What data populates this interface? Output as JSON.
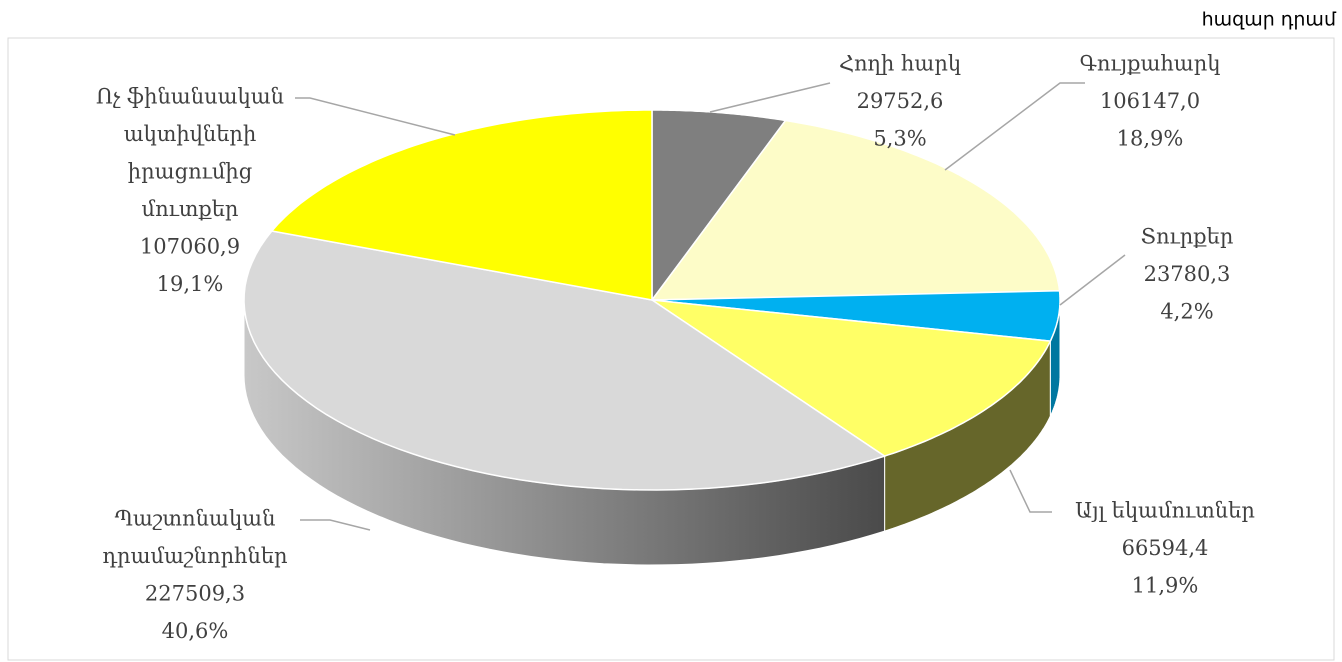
{
  "chart_data": {
    "type": "pie",
    "unit": "հազար դրամ",
    "categories": [
      [
        "Հողի հարկ"
      ],
      [
        "Գույքահարկ"
      ],
      [
        "Տուրքեր"
      ],
      [
        "Այլ եկամուտներ"
      ],
      [
        "Պաշտոնական",
        "դրամաշնորհներ"
      ],
      [
        "Ոչ ֆինանսական",
        "ակտիվների",
        "իրացումից",
        "մուտքեր"
      ]
    ],
    "values": [
      29752.6,
      106147.0,
      23780.3,
      66594.4,
      227509.3,
      107060.9
    ],
    "value_labels": [
      "29752,6",
      "106147,0",
      "23780,3",
      "66594,4",
      "227509,3",
      "107060,9"
    ],
    "percentages": [
      5.3,
      18.9,
      4.2,
      11.9,
      40.6,
      19.1
    ],
    "percentage_labels": [
      "5,3%",
      "18,9%",
      "4,2%",
      "11,9%",
      "40,6%",
      "19,1%"
    ],
    "colors": [
      "#7f7f7f",
      "#fdfcc8",
      "#00b0f0",
      "#ffff66",
      "#d9d9d9",
      "#ffff00"
    ],
    "side_colors": [
      "#555555",
      "#a9a884",
      "#0077a0",
      "#66662a",
      "#8c8c8c",
      "#a0a000"
    ]
  }
}
